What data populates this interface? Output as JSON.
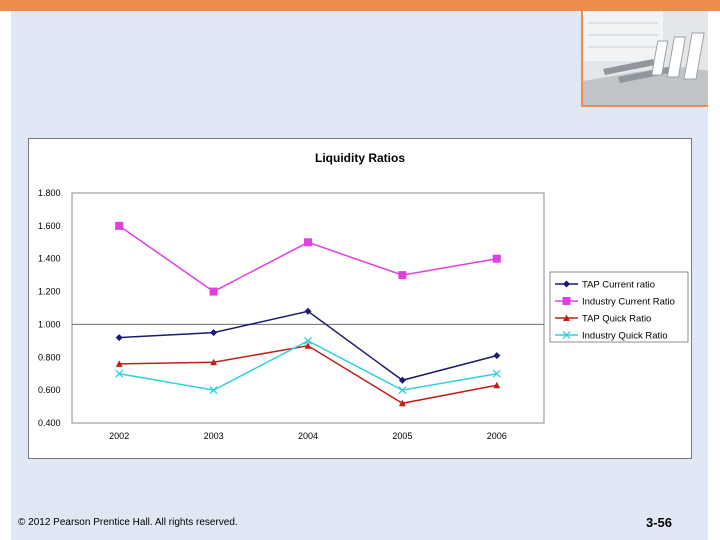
{
  "colors": {
    "accent_bar": "#f08c4c",
    "panel": "#dfe8f4"
  },
  "header": {
    "image_icon": "office-meeting-room-photo"
  },
  "chart_data": {
    "type": "line",
    "title": "Liquidity Ratios",
    "categories": [
      "2002",
      "2003",
      "2004",
      "2005",
      "2006"
    ],
    "ylim": [
      0.4,
      1.8
    ],
    "yticks": [
      "0.400",
      "0.600",
      "0.800",
      "1.000",
      "1.200",
      "1.400",
      "1.600",
      "1.800"
    ],
    "reference_line": 1.0,
    "legend_position": "right",
    "series": [
      {
        "name": "TAP Current ratio",
        "values": [
          0.92,
          0.95,
          1.08,
          0.66,
          0.81
        ],
        "color": "#1a1a6e",
        "marker": "diamond"
      },
      {
        "name": "Industry Current Ratio",
        "values": [
          1.6,
          1.2,
          1.5,
          1.3,
          1.4
        ],
        "color": "#e040e0",
        "marker": "square"
      },
      {
        "name": "TAP Quick Ratio",
        "values": [
          0.76,
          0.77,
          0.87,
          0.52,
          0.63
        ],
        "color": "#c0201a",
        "marker": "triangle"
      },
      {
        "name": "Industry Quick Ratio",
        "values": [
          0.7,
          0.6,
          0.9,
          0.6,
          0.7
        ],
        "color": "#30d0e0",
        "marker": "x"
      }
    ]
  },
  "footer": {
    "copyright": "© 2012 Pearson Prentice Hall. All rights reserved.",
    "slide_number": "3-56"
  }
}
